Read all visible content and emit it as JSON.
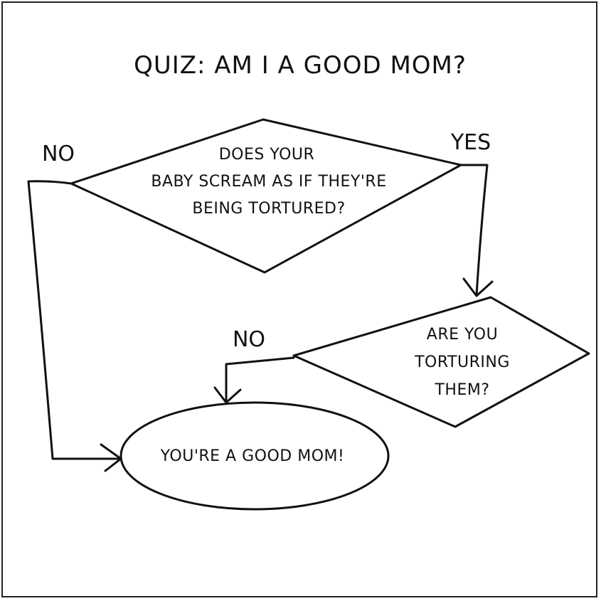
{
  "title": "QUIZ: AM I A GOOD MOM?",
  "question1": {
    "lines": [
      "DOES YOUR",
      "BABY SCREAM AS IF THEY'RE",
      "BEING TORTURED?"
    ],
    "no_label": "NO",
    "yes_label": "YES"
  },
  "question2": {
    "lines": [
      "ARE YOU",
      "TORTURING",
      "THEM?"
    ],
    "no_label": "NO"
  },
  "result": "YOU'RE A GOOD MOM!",
  "colors": {
    "ink": "#111111",
    "paper": "#ffffff"
  }
}
